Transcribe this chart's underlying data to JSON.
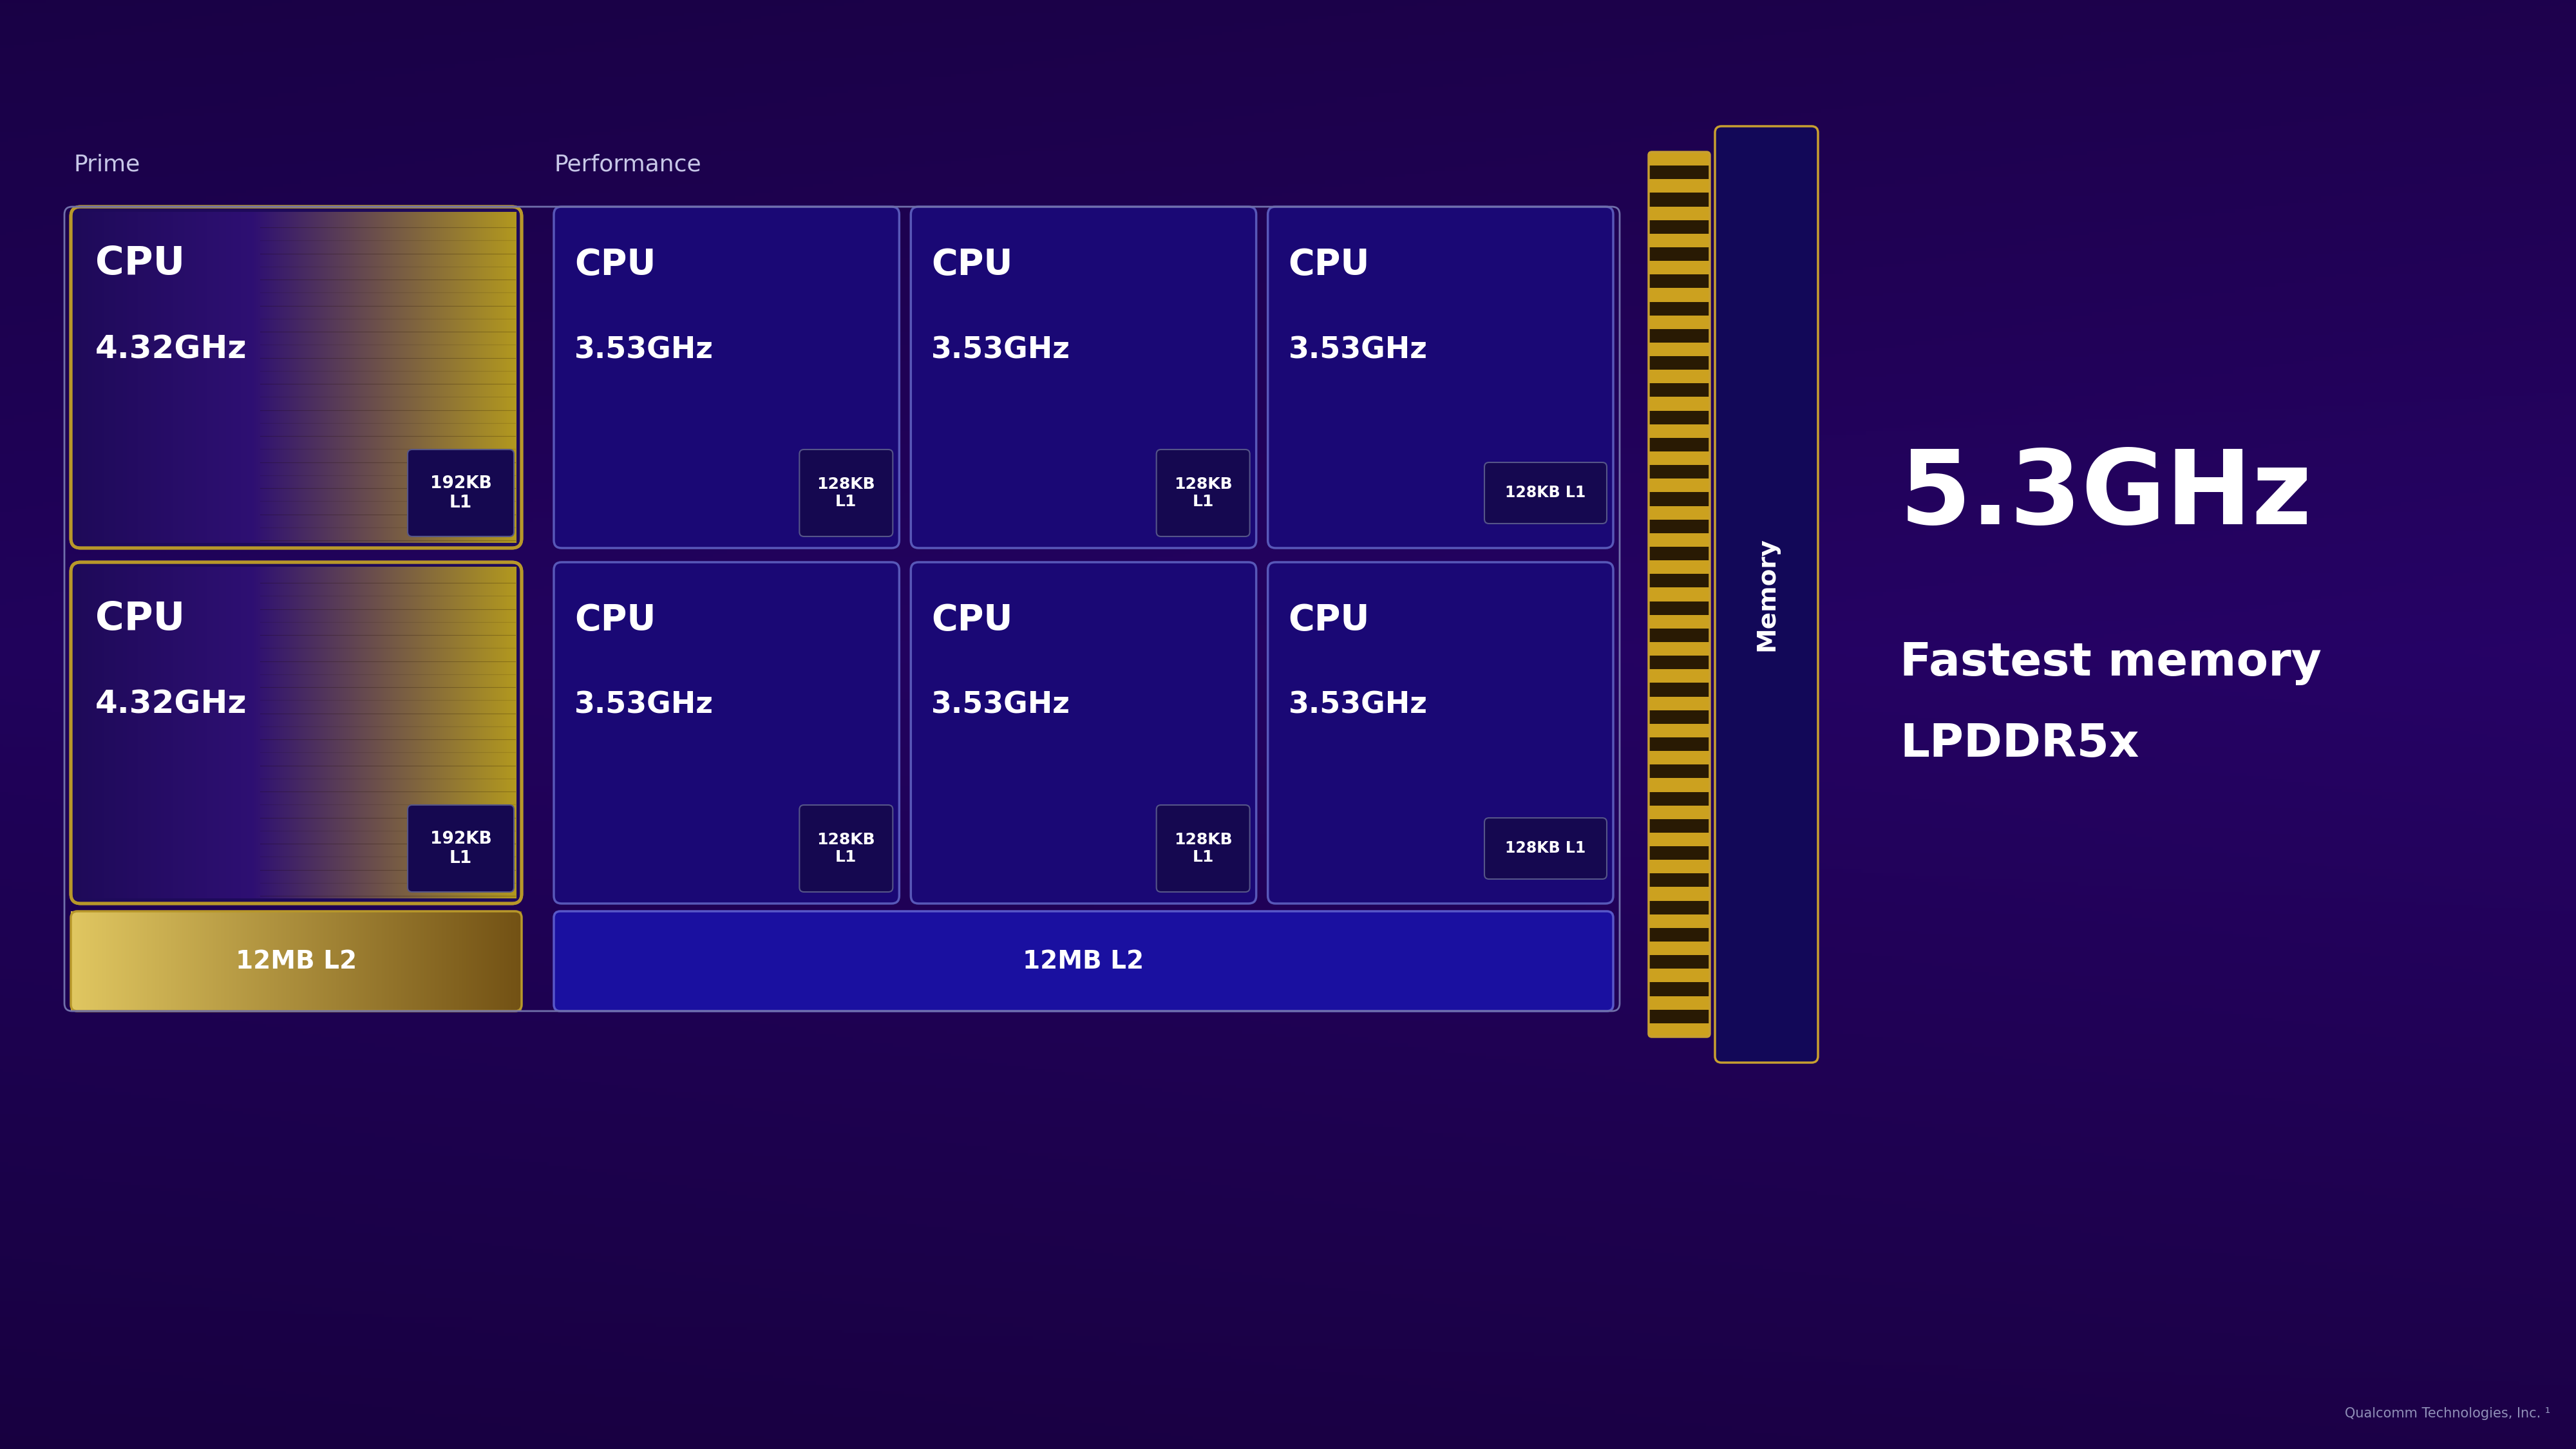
{
  "prime_label": "Prime",
  "perf_label": "Performance",
  "prime_cpu_text": "CPU",
  "prime_cpu_freq": "4.32GHz",
  "perf_cpu_text": "CPU",
  "perf_cpu_freq": "3.53GHz",
  "prime_l1_text": "192KB\nL1",
  "perf_l1_text": "128KB\nL1",
  "perf_l1_inline": "128KB L1",
  "prime_l2_text": "12MB L2",
  "perf_l2_text": "12MB L2",
  "memory_label": "Memory",
  "mem_freq": "5.3GHz",
  "mem_desc1": "Fastest memory",
  "mem_desc2": "LPDDR5x",
  "qualcomm_text": "Qualcomm Technologies, Inc. ¹",
  "bg_purple_dark": "#12003a",
  "bg_purple_mid": "#200060",
  "bg_purple_light": "#2a0080",
  "prime_core_fill": "#1e0a5a",
  "prime_core_border": "#b8982a",
  "prime_l1_fill": "#150850",
  "prime_l1_border": "#555588",
  "prime_l2_color_l": "#d4b84a",
  "prime_l2_color_r": "#7a6018",
  "perf_core_fill": "#1a0875",
  "perf_core_border": "#5858b8",
  "perf_l1_fill": "#120660",
  "perf_l1_border": "#444488",
  "perf_l2_fill": "#1a10a0",
  "perf_l2_border": "#5858c8",
  "mem_stripe_gold": "#c8a030",
  "mem_stripe_dark": "#2a1800",
  "mem_col_fill": "#120858",
  "mem_col_border": "#c8a030",
  "text_white": "#ffffff",
  "label_color": "#c8c8e8",
  "outer_border_color": "#7070aa"
}
